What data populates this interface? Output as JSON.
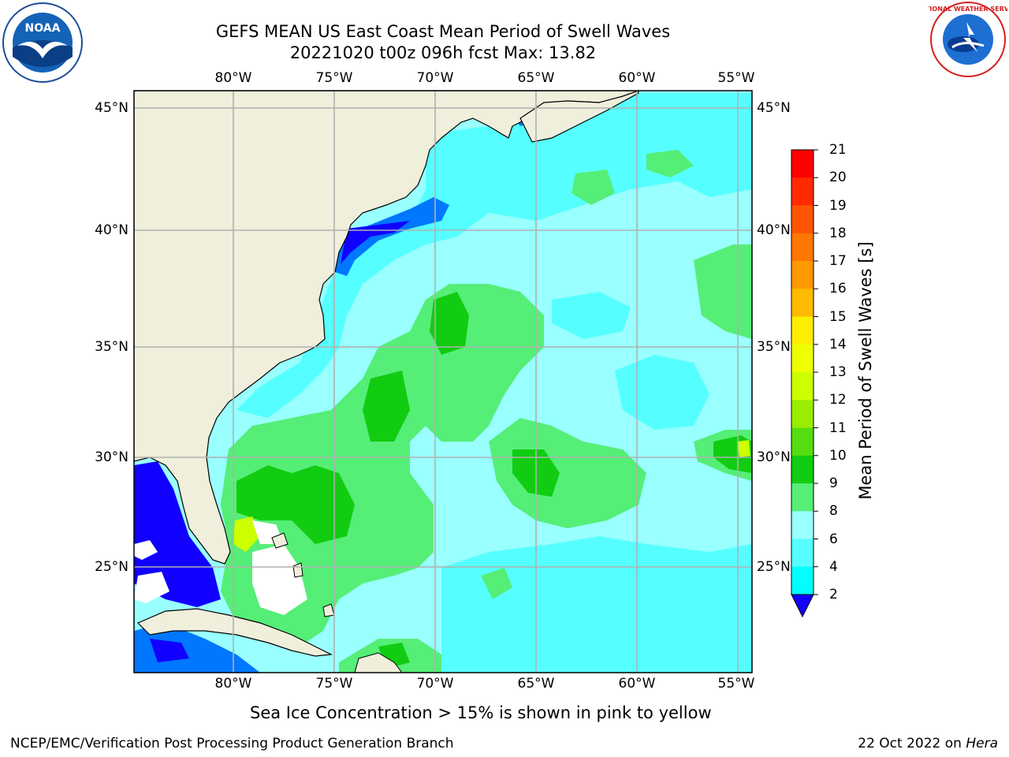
{
  "header": {
    "title_line1": "GEFS MEAN US East Coast Mean Period of Swell Waves",
    "title_line2": "20221020 t00z 096h fcst   Max: 13.82"
  },
  "map": {
    "lon_labels": [
      "80°W",
      "75°W",
      "70°W",
      "65°W",
      "60°W",
      "55°W"
    ],
    "lat_labels": [
      "45°N",
      "40°N",
      "35°N",
      "30°N",
      "25°N"
    ],
    "land_color": "#efefdc",
    "grid_color": "#b0b0b0"
  },
  "colorbar": {
    "label": "Mean Period of Swell Waves [s]",
    "ticks": [
      "21",
      "20",
      "19",
      "18",
      "17",
      "16",
      "15",
      "14",
      "13",
      "12",
      "11",
      "10",
      "9",
      "8",
      "6",
      "4",
      "2"
    ],
    "colors": [
      "#ff0000",
      "#ff2a00",
      "#ff5500",
      "#ff7700",
      "#ff9900",
      "#ffbb00",
      "#ffee00",
      "#eeff00",
      "#ccff00",
      "#99ee00",
      "#55dd11",
      "#11cc11",
      "#55ee77",
      "#99ffff",
      "#55ffff",
      "#00ffff",
      "#00bbff",
      "#0077ff"
    ],
    "extend_color": "#1100ff"
  },
  "note": "Sea Ice Concentration > 15% is shown in pink to yellow",
  "footer": {
    "left": "NCEP/EMC/Verification Post Processing Product Generation Branch",
    "date": "22 Oct 2022 on ",
    "host": "Hera"
  },
  "logos": {
    "noaa_text": "NOAA",
    "nws_text": "NATIONAL WEATHER SERVICE"
  }
}
